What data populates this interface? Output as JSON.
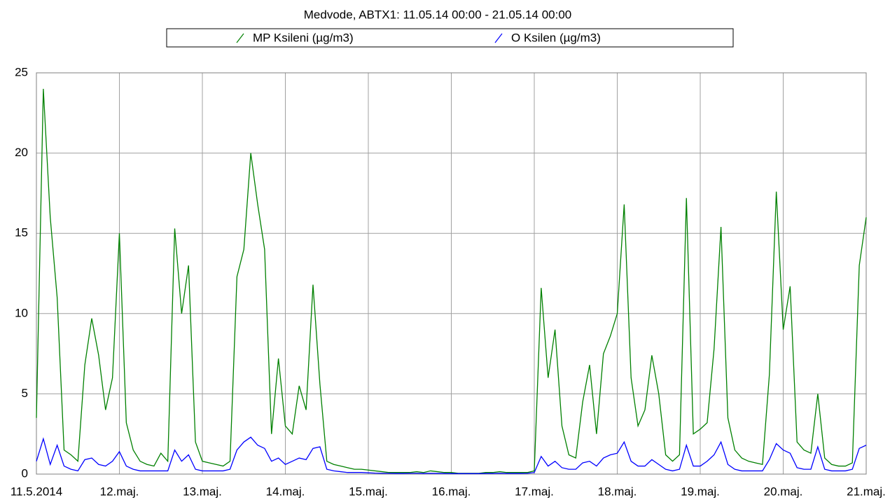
{
  "chart_data": {
    "type": "line",
    "title": "Medvode, ABTX1: 11.05.14 00:00 - 21.05.14 00:00",
    "x": [
      0,
      2,
      4,
      6,
      8,
      10,
      12,
      14,
      16,
      18,
      20,
      22,
      24,
      26,
      28,
      30,
      32,
      34,
      36,
      38,
      40,
      42,
      44,
      46,
      48,
      50,
      52,
      54,
      56,
      58,
      60,
      62,
      64,
      66,
      68,
      70,
      72,
      74,
      76,
      78,
      80,
      82,
      84,
      86,
      88,
      90,
      92,
      94,
      96,
      98,
      100,
      102,
      104,
      106,
      108,
      110,
      112,
      114,
      116,
      118,
      120,
      122,
      124,
      126,
      128,
      130,
      132,
      134,
      136,
      138,
      140,
      142,
      144,
      146,
      148,
      150,
      152,
      154,
      156,
      158,
      160,
      162,
      164,
      166,
      168,
      170,
      172,
      174,
      176,
      178,
      180,
      182,
      184,
      186,
      188,
      190,
      192,
      194,
      196,
      198,
      200,
      202,
      204,
      206,
      208,
      210,
      212,
      214,
      216,
      218,
      220,
      222,
      224,
      226,
      228,
      230,
      232,
      234,
      236,
      238,
      240
    ],
    "series": [
      {
        "name": "MP Ksileni (µg/m3)",
        "color": "#008000",
        "values": [
          3.5,
          24,
          16,
          11,
          1.5,
          1.2,
          0.8,
          6.8,
          9.7,
          7.4,
          4,
          6,
          15,
          3.2,
          1.5,
          0.8,
          0.6,
          0.5,
          1.3,
          0.8,
          15.3,
          10,
          13,
          2,
          0.8,
          0.7,
          0.6,
          0.5,
          0.8,
          12.3,
          14,
          20,
          16.8,
          14,
          2.5,
          7.2,
          3,
          2.5,
          5.5,
          4,
          11.8,
          5.6,
          0.8,
          0.6,
          0.5,
          0.4,
          0.3,
          0.3,
          0.25,
          0.2,
          0.15,
          0.1,
          0.1,
          0.1,
          0.1,
          0.15,
          0.1,
          0.2,
          0.15,
          0.1,
          0.1,
          0.05,
          0.05,
          0.05,
          0.05,
          0.1,
          0.1,
          0.15,
          0.1,
          0.1,
          0.1,
          0.1,
          0.2,
          11.6,
          6,
          9,
          3,
          1.2,
          1.0,
          4.5,
          6.8,
          2.5,
          7.5,
          8.6,
          10,
          16.8,
          6,
          3,
          4,
          7.4,
          5,
          1.2,
          0.8,
          1.2,
          17.2,
          2.5,
          2.8,
          3.2,
          7.8,
          15.4,
          3.5,
          1.5,
          1.0,
          0.8,
          0.7,
          0.6,
          6.2,
          17.6,
          9,
          11.7,
          2,
          1.5,
          1.3,
          5,
          1.0,
          0.6,
          0.5,
          0.5,
          0.7,
          13,
          16
        ]
      },
      {
        "name": "O Ksilen (µg/m3)",
        "color": "#0000ff",
        "values": [
          0.8,
          2.2,
          0.6,
          1.8,
          0.5,
          0.3,
          0.2,
          0.9,
          1.0,
          0.6,
          0.5,
          0.8,
          1.4,
          0.5,
          0.3,
          0.2,
          0.2,
          0.2,
          0.2,
          0.2,
          1.5,
          0.8,
          1.2,
          0.3,
          0.2,
          0.2,
          0.2,
          0.2,
          0.3,
          1.5,
          2.0,
          2.3,
          1.8,
          1.6,
          0.8,
          1.0,
          0.6,
          0.8,
          1.0,
          0.9,
          1.6,
          1.7,
          0.3,
          0.2,
          0.15,
          0.1,
          0.1,
          0.1,
          0.08,
          0.06,
          0.05,
          0.05,
          0.04,
          0.04,
          0.05,
          0.05,
          0.04,
          0.05,
          0.04,
          0.04,
          0.03,
          0.03,
          0.03,
          0.03,
          0.03,
          0.04,
          0.04,
          0.05,
          0.04,
          0.04,
          0.04,
          0.05,
          0.1,
          1.1,
          0.5,
          0.8,
          0.4,
          0.3,
          0.3,
          0.7,
          0.8,
          0.5,
          1.0,
          1.2,
          1.3,
          2.0,
          0.8,
          0.5,
          0.5,
          0.9,
          0.6,
          0.3,
          0.2,
          0.3,
          1.8,
          0.5,
          0.5,
          0.8,
          1.2,
          2.0,
          0.6,
          0.3,
          0.2,
          0.2,
          0.2,
          0.2,
          0.9,
          1.9,
          1.5,
          1.3,
          0.4,
          0.3,
          0.3,
          1.7,
          0.3,
          0.2,
          0.2,
          0.2,
          0.3,
          1.6,
          1.8
        ]
      }
    ],
    "xlim": [
      0,
      240
    ],
    "xticks": [
      {
        "value": 0,
        "label": "11.5.2014"
      },
      {
        "value": 24,
        "label": "12.maj."
      },
      {
        "value": 48,
        "label": "13.maj."
      },
      {
        "value": 72,
        "label": "14.maj."
      },
      {
        "value": 96,
        "label": "15.maj."
      },
      {
        "value": 120,
        "label": "16.maj."
      },
      {
        "value": 144,
        "label": "17.maj."
      },
      {
        "value": 168,
        "label": "18.maj."
      },
      {
        "value": 192,
        "label": "19.maj."
      },
      {
        "value": 216,
        "label": "20.maj."
      },
      {
        "value": 240,
        "label": "21.maj."
      }
    ],
    "ylim": [
      0,
      25
    ],
    "yticks": [
      0,
      5,
      10,
      15,
      20,
      25
    ],
    "grid": true
  }
}
